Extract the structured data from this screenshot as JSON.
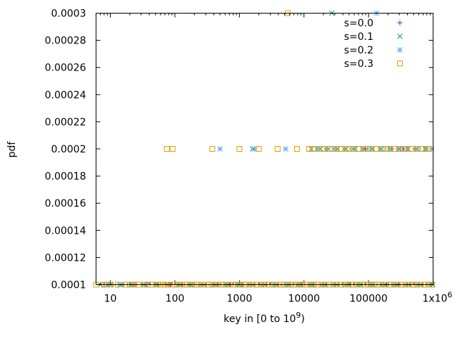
{
  "chart_data": {
    "type": "scatter",
    "title": "",
    "xlabel": "key in [0 to 10⁹)",
    "xlabel_base": "key in [0 to 10",
    "xlabel_exp": "9",
    "xlabel_tail": ")",
    "ylabel": "pdf",
    "xscale": "log",
    "xlim": [
      6,
      1000000
    ],
    "ylim": [
      0.0001,
      0.0003
    ],
    "grid": false,
    "legend_position": "top-right",
    "x_ticks": [
      {
        "value": 10,
        "label": "10"
      },
      {
        "value": 100,
        "label": "100"
      },
      {
        "value": 1000,
        "label": "1000"
      },
      {
        "value": 10000,
        "label": "10000"
      },
      {
        "value": 100000,
        "label": "100000"
      },
      {
        "value": 1000000,
        "label": "1x10",
        "exp": "6"
      }
    ],
    "y_ticks": [
      {
        "value": 0.0001,
        "label": "0.0001"
      },
      {
        "value": 0.00012,
        "label": "0.00012"
      },
      {
        "value": 0.00014,
        "label": "0.00014"
      },
      {
        "value": 0.00016,
        "label": "0.00016"
      },
      {
        "value": 0.00018,
        "label": "0.00018"
      },
      {
        "value": 0.0002,
        "label": "0.0002"
      },
      {
        "value": 0.00022,
        "label": "0.00022"
      },
      {
        "value": 0.00024,
        "label": "0.00024"
      },
      {
        "value": 0.00026,
        "label": "0.00026"
      },
      {
        "value": 0.00028,
        "label": "0.00028"
      },
      {
        "value": 0.0003,
        "label": "0.0003"
      }
    ],
    "series": [
      {
        "name": "s=0.0",
        "marker": "plus",
        "color": "#9400d3",
        "points": [
          [
            8,
            0.0001
          ],
          [
            11,
            0.0001
          ],
          [
            16,
            0.0001
          ],
          [
            24,
            0.0001
          ],
          [
            37,
            0.0001
          ],
          [
            55,
            0.0001
          ],
          [
            85,
            0.0001
          ],
          [
            130,
            0.0001
          ],
          [
            200,
            0.0001
          ],
          [
            300,
            0.0001
          ],
          [
            470,
            0.0001
          ],
          [
            720,
            0.0001
          ],
          [
            1100,
            0.0001
          ],
          [
            1700,
            0.0001
          ],
          [
            2600,
            0.0001
          ],
          [
            4000,
            0.0001
          ],
          [
            6100,
            0.0001
          ],
          [
            9300,
            0.0001
          ],
          [
            14000,
            0.0001
          ],
          [
            22000,
            0.0001
          ],
          [
            34000,
            0.0001
          ],
          [
            52000,
            0.0001
          ],
          [
            80000,
            0.0001
          ],
          [
            120000,
            0.0001
          ],
          [
            190000,
            0.0001
          ],
          [
            290000,
            0.0001
          ],
          [
            440000,
            0.0001
          ],
          [
            680000,
            0.0001
          ],
          [
            950000,
            0.0001
          ],
          [
            90000,
            0.0002
          ],
          [
            150000,
            0.0002
          ],
          [
            230000,
            0.0002
          ],
          [
            350000,
            0.0002
          ],
          [
            520000,
            0.0002
          ],
          [
            780000,
            0.0002
          ]
        ]
      },
      {
        "name": "s=0.1",
        "marker": "x",
        "color": "#009e73",
        "points": [
          [
            7,
            0.0001
          ],
          [
            10,
            0.0001
          ],
          [
            14,
            0.0001
          ],
          [
            21,
            0.0001
          ],
          [
            33,
            0.0001
          ],
          [
            50,
            0.0001
          ],
          [
            77,
            0.0001
          ],
          [
            120,
            0.0001
          ],
          [
            180,
            0.0001
          ],
          [
            280,
            0.0001
          ],
          [
            430,
            0.0001
          ],
          [
            660,
            0.0001
          ],
          [
            1000,
            0.0001
          ],
          [
            1600,
            0.0001
          ],
          [
            2500,
            0.0001
          ],
          [
            3800,
            0.0001
          ],
          [
            5800,
            0.0001
          ],
          [
            8900,
            0.0001
          ],
          [
            13500,
            0.0001
          ],
          [
            21000,
            0.0001
          ],
          [
            32000,
            0.0001
          ],
          [
            50000,
            0.0001
          ],
          [
            76000,
            0.0001
          ],
          [
            117000,
            0.0001
          ],
          [
            180000,
            0.0001
          ],
          [
            275000,
            0.0001
          ],
          [
            420000,
            0.0001
          ],
          [
            640000,
            0.0001
          ],
          [
            980000,
            0.0001
          ],
          [
            1600,
            0.0002
          ],
          [
            13000,
            0.0002
          ],
          [
            18000,
            0.0002
          ],
          [
            24000,
            0.0002
          ],
          [
            33000,
            0.0002
          ],
          [
            45000,
            0.0002
          ],
          [
            62000,
            0.0002
          ],
          [
            85000,
            0.0002
          ],
          [
            115000,
            0.0002
          ],
          [
            160000,
            0.0002
          ],
          [
            220000,
            0.0002
          ],
          [
            300000,
            0.0002
          ],
          [
            410000,
            0.0002
          ],
          [
            560000,
            0.0002
          ],
          [
            770000,
            0.0002
          ],
          [
            27000,
            0.0003
          ]
        ]
      },
      {
        "name": "s=0.2",
        "marker": "star",
        "color": "#56b4e9",
        "points": [
          [
            9,
            0.0001
          ],
          [
            15,
            0.0001
          ],
          [
            22,
            0.0001
          ],
          [
            36,
            0.0001
          ],
          [
            52,
            0.0001
          ],
          [
            78,
            0.0001
          ],
          [
            110,
            0.0001
          ],
          [
            165,
            0.0001
          ],
          [
            250,
            0.0001
          ],
          [
            390,
            0.0001
          ],
          [
            600,
            0.0001
          ],
          [
            920,
            0.0001
          ],
          [
            1400,
            0.0001
          ],
          [
            2200,
            0.0001
          ],
          [
            3400,
            0.0001
          ],
          [
            5200,
            0.0001
          ],
          [
            8000,
            0.0001
          ],
          [
            12300,
            0.0001
          ],
          [
            19000,
            0.0001
          ],
          [
            29000,
            0.0001
          ],
          [
            44000,
            0.0001
          ],
          [
            68000,
            0.0001
          ],
          [
            104000,
            0.0001
          ],
          [
            160000,
            0.0001
          ],
          [
            245000,
            0.0001
          ],
          [
            375000,
            0.0001
          ],
          [
            575000,
            0.0001
          ],
          [
            880000,
            0.0001
          ],
          [
            500,
            0.0002
          ],
          [
            1700,
            0.0002
          ],
          [
            5200,
            0.0002
          ],
          [
            16000,
            0.0002
          ],
          [
            22000,
            0.0002
          ],
          [
            30000,
            0.0002
          ],
          [
            42000,
            0.0002
          ],
          [
            58000,
            0.0002
          ],
          [
            80000,
            0.0002
          ],
          [
            110000,
            0.0002
          ],
          [
            150000,
            0.0002
          ],
          [
            210000,
            0.0002
          ],
          [
            290000,
            0.0002
          ],
          [
            400000,
            0.0002
          ],
          [
            550000,
            0.0002
          ],
          [
            750000,
            0.0002
          ],
          [
            950000,
            0.0002
          ],
          [
            133000,
            0.0003
          ]
        ]
      },
      {
        "name": "s=0.3",
        "marker": "square",
        "color": "#e69f00",
        "points": [
          [
            6,
            0.0001
          ],
          [
            8,
            0.0001
          ],
          [
            10,
            0.0001
          ],
          [
            13,
            0.0001
          ],
          [
            17,
            0.0001
          ],
          [
            20,
            0.0001
          ],
          [
            23,
            0.0001
          ],
          [
            28,
            0.0001
          ],
          [
            33,
            0.0001
          ],
          [
            38,
            0.0001
          ],
          [
            45,
            0.0001
          ],
          [
            52,
            0.0001
          ],
          [
            58,
            0.0001
          ],
          [
            65,
            0.0001
          ],
          [
            72,
            0.0001
          ],
          [
            80,
            0.0001
          ],
          [
            90,
            0.0001
          ],
          [
            100,
            0.0001
          ],
          [
            115,
            0.0001
          ],
          [
            130,
            0.0001
          ],
          [
            150,
            0.0001
          ],
          [
            170,
            0.0001
          ],
          [
            195,
            0.0001
          ],
          [
            220,
            0.0001
          ],
          [
            250,
            0.0001
          ],
          [
            285,
            0.0001
          ],
          [
            325,
            0.0001
          ],
          [
            370,
            0.0001
          ],
          [
            420,
            0.0001
          ],
          [
            480,
            0.0001
          ],
          [
            550,
            0.0001
          ],
          [
            630,
            0.0001
          ],
          [
            720,
            0.0001
          ],
          [
            820,
            0.0001
          ],
          [
            940,
            0.0001
          ],
          [
            1080,
            0.0001
          ],
          [
            1240,
            0.0001
          ],
          [
            1420,
            0.0001
          ],
          [
            1630,
            0.0001
          ],
          [
            1870,
            0.0001
          ],
          [
            2140,
            0.0001
          ],
          [
            2450,
            0.0001
          ],
          [
            2800,
            0.0001
          ],
          [
            3200,
            0.0001
          ],
          [
            3670,
            0.0001
          ],
          [
            4200,
            0.0001
          ],
          [
            4800,
            0.0001
          ],
          [
            5500,
            0.0001
          ],
          [
            6300,
            0.0001
          ],
          [
            7200,
            0.0001
          ],
          [
            8300,
            0.0001
          ],
          [
            9500,
            0.0001
          ],
          [
            10900,
            0.0001
          ],
          [
            12500,
            0.0001
          ],
          [
            14300,
            0.0001
          ],
          [
            16400,
            0.0001
          ],
          [
            18800,
            0.0001
          ],
          [
            21500,
            0.0001
          ],
          [
            24600,
            0.0001
          ],
          [
            28200,
            0.0001
          ],
          [
            32300,
            0.0001
          ],
          [
            37000,
            0.0001
          ],
          [
            42400,
            0.0001
          ],
          [
            48600,
            0.0001
          ],
          [
            55700,
            0.0001
          ],
          [
            63800,
            0.0001
          ],
          [
            73100,
            0.0001
          ],
          [
            83800,
            0.0001
          ],
          [
            96000,
            0.0001
          ],
          [
            110000,
            0.0001
          ],
          [
            126000,
            0.0001
          ],
          [
            144000,
            0.0001
          ],
          [
            165000,
            0.0001
          ],
          [
            189000,
            0.0001
          ],
          [
            217000,
            0.0001
          ],
          [
            248000,
            0.0001
          ],
          [
            284000,
            0.0001
          ],
          [
            326000,
            0.0001
          ],
          [
            373000,
            0.0001
          ],
          [
            428000,
            0.0001
          ],
          [
            490000,
            0.0001
          ],
          [
            561000,
            0.0001
          ],
          [
            643000,
            0.0001
          ],
          [
            737000,
            0.0001
          ],
          [
            845000,
            0.0001
          ],
          [
            968000,
            0.0001
          ],
          [
            75,
            0.0002
          ],
          [
            92,
            0.0002
          ],
          [
            380,
            0.0002
          ],
          [
            1000,
            0.0002
          ],
          [
            2000,
            0.0002
          ],
          [
            3900,
            0.0002
          ],
          [
            7800,
            0.0002
          ],
          [
            12000,
            0.0002
          ],
          [
            14000,
            0.0002
          ],
          [
            17000,
            0.0002
          ],
          [
            20000,
            0.0002
          ],
          [
            25000,
            0.0002
          ],
          [
            31000,
            0.0002
          ],
          [
            38000,
            0.0002
          ],
          [
            47000,
            0.0002
          ],
          [
            58000,
            0.0002
          ],
          [
            71000,
            0.0002
          ],
          [
            88000,
            0.0002
          ],
          [
            108000,
            0.0002
          ],
          [
            133000,
            0.0002
          ],
          [
            164000,
            0.0002
          ],
          [
            202000,
            0.0002
          ],
          [
            248000,
            0.0002
          ],
          [
            305000,
            0.0002
          ],
          [
            375000,
            0.0002
          ],
          [
            462000,
            0.0002
          ],
          [
            568000,
            0.0002
          ],
          [
            699000,
            0.0002
          ],
          [
            860000,
            0.0002
          ],
          [
            5600,
            0.0003
          ]
        ]
      }
    ]
  }
}
